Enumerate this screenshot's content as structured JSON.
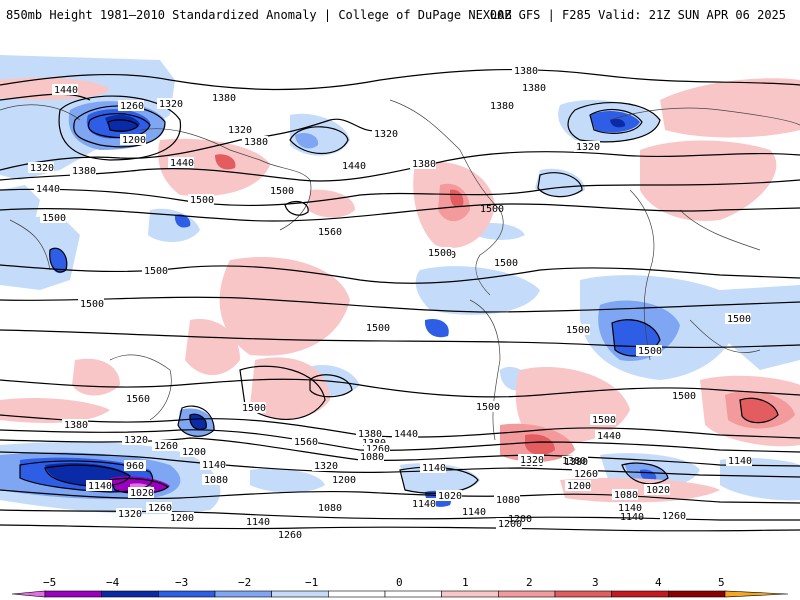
{
  "header": {
    "title_left": "850mb Height 1981–2010 Standardized Anomaly | College of DuPage NEXLAB",
    "title_right": "00Z GFS | F285 Valid: 21Z SUN APR 06 2025"
  },
  "map": {
    "type": "global-map",
    "contour_labels": [
      "1440",
      "1260",
      "1320",
      "1380",
      "1200",
      "1320",
      "1380",
      "1440",
      "1320",
      "1380",
      "1440",
      "1500",
      "1500",
      "1560",
      "1500",
      "1500",
      "1500",
      "1560",
      "1500",
      "1380",
      "1320",
      "1260",
      "1200",
      "1140",
      "960",
      "1140",
      "1020",
      "1260",
      "1080",
      "1200",
      "1140",
      "1080",
      "1320",
      "1200",
      "1140",
      "1260",
      "1320",
      "1380",
      "1440",
      "1560",
      "1500",
      "1380",
      "1260",
      "1320",
      "1080",
      "1140",
      "1200",
      "1020",
      "1080",
      "1140",
      "1200",
      "1380",
      "1500",
      "1440",
      "1500",
      "1500",
      "1440",
      "1500",
      "1500",
      "1500",
      "1380",
      "1320",
      "1380",
      "1380",
      "1380",
      "1320",
      "1440",
      "1500",
      "1500",
      "1500",
      "1200",
      "1260",
      "1320",
      "1380",
      "1140",
      "1080",
      "1020",
      "1140",
      "1260",
      "1140"
    ]
  },
  "colorbar": {
    "ticks": [
      "−5",
      "−4",
      "−3",
      "−2",
      "−1",
      "0",
      "1",
      "2",
      "3",
      "4",
      "5"
    ],
    "colors": {
      "neg5": "#e070e0",
      "neg4": "#9b00c0",
      "neg3": "#0a2aa8",
      "neg2": "#2f5ee6",
      "neg1_5": "#7ea6f2",
      "neg1": "#c4dcfa",
      "zero": "#ffffff",
      "pos1": "#f9c6c8",
      "pos1_5": "#f39a9c",
      "pos2": "#e35c60",
      "pos3": "#c41a1e",
      "pos4": "#8c0000",
      "pos5": "#f5a623"
    }
  }
}
